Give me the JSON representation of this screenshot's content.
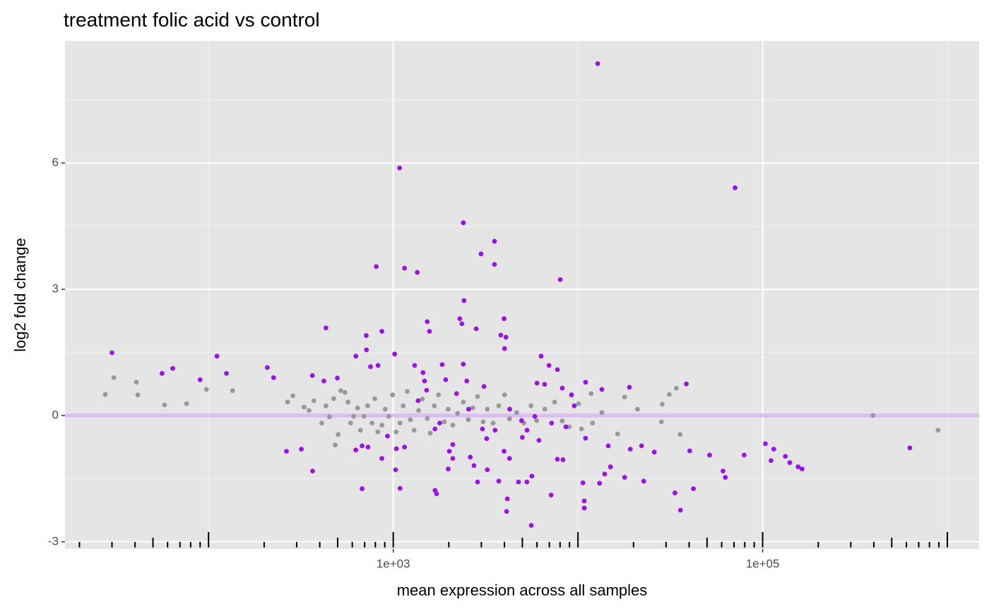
{
  "chart_data": {
    "type": "scatter",
    "title": "treatment folic acid vs control",
    "x_label": "mean expression across all samples",
    "y_label": "log2 fold change",
    "x_log": true,
    "xlim": [
      16.7,
      1486000
    ],
    "ylim": [
      -3.17,
      8.9
    ],
    "xticks": [
      {
        "value": 1000,
        "label": "1e+03"
      },
      {
        "value": 100000,
        "label": "1e+05"
      }
    ],
    "yticks": [
      -3,
      0,
      3,
      6
    ],
    "x_minor_grid": [
      100,
      10000,
      1000000
    ],
    "y_minor_grid": [
      -1.5,
      1.5,
      4.5,
      7.5
    ],
    "grid": true,
    "hline": 0,
    "hline_color": "#d6aef5",
    "logticks": [
      20,
      30,
      40,
      50,
      60,
      70,
      80,
      90,
      100,
      200,
      300,
      400,
      500,
      600,
      700,
      800,
      900,
      1000,
      2000,
      3000,
      4000,
      5000,
      6000,
      7000,
      8000,
      9000,
      10000,
      20000,
      30000,
      40000,
      50000,
      60000,
      70000,
      80000,
      90000,
      100000,
      200000,
      300000,
      400000,
      500000,
      600000,
      700000,
      800000,
      900000,
      1000000
    ],
    "series": [
      {
        "color": "#999999",
        "x": [
          27.6,
          30.7,
          40.7,
          41.4,
          57.8,
          76.1,
          97.4,
          135,
          268,
          286,
          329,
          350,
          372,
          410,
          432,
          452,
          476,
          485,
          503,
          520,
          548,
          569,
          588,
          610,
          641,
          664,
          695,
          727,
          768,
          794,
          825,
          868,
          905,
          946,
          992,
          1037,
          1088,
          1132,
          1191,
          1238,
          1296,
          1371,
          1437,
          1530,
          1586,
          1668,
          1758,
          1890,
          1985,
          2100,
          2230,
          2395,
          2550,
          2690,
          2861,
          3068,
          3230,
          3470,
          3727,
          4005,
          4260,
          4660,
          5100,
          5570,
          5975,
          6620,
          7470,
          8220,
          8970,
          10080,
          10450,
          11800,
          12000,
          13470,
          16400,
          17900,
          21000,
          28300,
          28600,
          31200,
          34100,
          35700,
          396000,
          891000
        ],
        "values": [
          0.5,
          0.9,
          0.79,
          0.49,
          0.25,
          0.28,
          0.62,
          0.59,
          0.32,
          0.47,
          0.2,
          0.12,
          0.35,
          -0.18,
          0.23,
          -0.03,
          0.4,
          -0.7,
          -0.45,
          0.59,
          0.55,
          0.32,
          -0.18,
          -0.02,
          0.18,
          -0.35,
          -0.02,
          0.23,
          -0.18,
          0.4,
          -0.39,
          -0.23,
          0.15,
          -0.02,
          0.49,
          -0.39,
          -0.18,
          0.23,
          0.57,
          -0.1,
          -0.35,
          0.12,
          0.39,
          -0.07,
          -0.42,
          0.23,
          0.49,
          -0.15,
          0.15,
          -0.23,
          0.05,
          0.32,
          -0.1,
          0.18,
          0.45,
          -0.15,
          0.15,
          -0.18,
          0.23,
          0.49,
          -0.08,
          0.07,
          -0.18,
          0.23,
          -0.12,
          0.15,
          0.32,
          -0.13,
          -0.27,
          0.28,
          -0.32,
          0.52,
          -0.18,
          0.07,
          -0.44,
          0.44,
          0.15,
          -0.15,
          0.27,
          0.5,
          0.65,
          -0.45,
          0.0,
          -0.35
        ]
      },
      {
        "color": "#9a12e6",
        "x": [
          30,
          56,
          64,
          90,
          111,
          125,
          208,
          225,
          264,
          318,
          366,
          432,
          365,
          421,
          498,
          627,
          678,
          714,
          716,
          753,
          809,
          868,
          827,
          678,
          730,
          627,
          868,
          931,
          1018,
          1082,
          1151,
          1349,
          1088,
          1030,
          1040,
          1151,
          1306,
          1449,
          1528,
          1571,
          1683,
          1716,
          1478,
          1840,
          1923,
          2012,
          2102,
          1985,
          2100,
          2291,
          2395,
          2416,
          2353,
          2395,
          2500,
          2613,
          2736,
          2812,
          2861,
          2987,
          3040,
          3204,
          3100,
          3230,
          3532,
          3532,
          3727,
          3822,
          3980,
          4005,
          4075,
          3980,
          4110,
          4145,
          4260,
          4765,
          5000,
          5585,
          5290,
          5630,
          6150,
          6320,
          6970,
          7160,
          7740,
          8020,
          7740,
          8300,
          8225,
          9230,
          10640,
          10820,
          10820,
          11000,
          11000,
          12790,
          13470,
          13100,
          13950,
          14600,
          15000,
          17900,
          19000,
          19200,
          22100,
          22700,
          25900,
          33500,
          35900,
          38600,
          40300,
          42200,
          51600,
          61000,
          62800,
          70900,
          79400,
          103500,
          114800,
          111000,
          132800,
          140300,
          155600,
          163500,
          626600,
          1363,
          1516,
          1682,
          1785,
          2200,
          2560,
          3560,
          4270,
          4950,
          5300,
          5840,
          6000,
          6600,
          7200,
          8600,
          9550
        ],
        "values": [
          1.49,
          1.0,
          1.12,
          0.85,
          1.41,
          1.0,
          1.14,
          0.9,
          -0.85,
          -0.8,
          -1.32,
          2.08,
          0.95,
          0.82,
          0.89,
          1.41,
          -1.74,
          1.9,
          1.56,
          1.16,
          3.54,
          2.0,
          1.19,
          -0.72,
          -0.75,
          -0.82,
          -1.02,
          -0.49,
          1.46,
          5.88,
          3.5,
          3.4,
          -1.73,
          -1.29,
          -0.79,
          -0.75,
          1.19,
          1.02,
          2.23,
          2.0,
          -1.78,
          -1.86,
          0.82,
          1.21,
          0.85,
          -0.85,
          -0.69,
          -1.27,
          -1.02,
          2.3,
          4.58,
          2.73,
          2.18,
          1.22,
          0.82,
          -0.99,
          -1.19,
          2.06,
          -1.58,
          3.84,
          -0.32,
          -0.55,
          0.69,
          -1.29,
          4.14,
          3.59,
          -1.56,
          1.91,
          2.3,
          1.59,
          1.86,
          -0.85,
          -2.28,
          -1.98,
          -1.02,
          -1.58,
          -0.52,
          -2.61,
          -1.58,
          -1.44,
          -0.59,
          1.41,
          1.19,
          -1.89,
          1.09,
          3.23,
          -1.04,
          -1.05,
          0.65,
          0.49,
          -1.6,
          -2.03,
          -2.2,
          -0.54,
          0.79,
          8.36,
          0.62,
          -1.61,
          -1.39,
          -0.72,
          -1.22,
          -1.47,
          0.67,
          -0.8,
          -0.72,
          -1.56,
          -0.87,
          -1.84,
          -2.25,
          0.75,
          -0.84,
          -1.74,
          -0.94,
          -1.32,
          -1.47,
          5.41,
          -0.94,
          -0.67,
          -0.8,
          -1.07,
          -0.97,
          -1.12,
          -1.22,
          -1.27,
          -0.77,
          0.35,
          0.6,
          -0.32,
          -0.18,
          0.52,
          0.15,
          -0.35,
          0.15,
          -0.12,
          -0.35,
          -0.02,
          0.77,
          0.74,
          -0.18,
          -0.27,
          0.23
        ]
      }
    ]
  }
}
